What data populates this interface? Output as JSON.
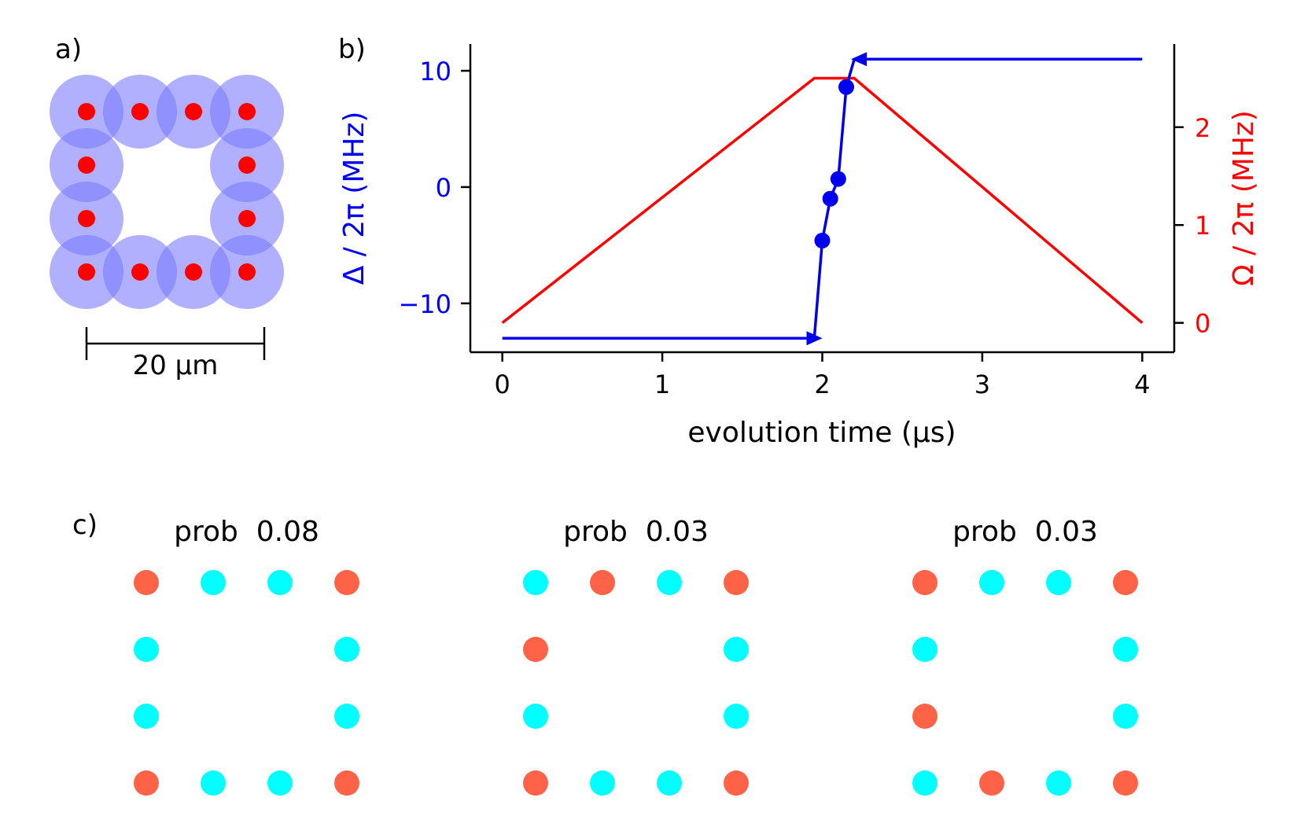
{
  "panel_a": {
    "label": "a)",
    "scale_bar_label": "20 μm",
    "atom_color": "#ff0000",
    "blockade_color": "#7b7bff",
    "atoms": [
      [
        0,
        0
      ],
      [
        1,
        0
      ],
      [
        2,
        0
      ],
      [
        3,
        0
      ],
      [
        0,
        1
      ],
      [
        3,
        1
      ],
      [
        0,
        2
      ],
      [
        3,
        2
      ],
      [
        0,
        3
      ],
      [
        1,
        3
      ],
      [
        2,
        3
      ],
      [
        3,
        3
      ]
    ]
  },
  "chart_data": {
    "type": "line",
    "label": "b)",
    "xlabel": "evolution time (μs)",
    "xlim": [
      -0.2,
      4.2
    ],
    "xticks": [
      0,
      1,
      2,
      3,
      4
    ],
    "left_axis": {
      "label": "Δ / 2π (MHz)",
      "color": "#0000ee",
      "ylim": [
        -14.2,
        12.3
      ],
      "ticks": [
        -10,
        0,
        10
      ],
      "tick_labels": [
        "−10",
        "0",
        "10"
      ]
    },
    "right_axis": {
      "label": "Ω / 2π (MHz)",
      "color": "#ff0000",
      "ylim": [
        -0.3,
        2.85
      ],
      "ticks": [
        0,
        1,
        2
      ],
      "tick_labels": [
        "0",
        "1",
        "2"
      ]
    },
    "series": [
      {
        "name": "Omega",
        "axis": "right",
        "color": "#ff0000",
        "x": [
          0,
          1.95,
          2.2,
          4
        ],
        "y": [
          0,
          2.5,
          2.5,
          0
        ]
      },
      {
        "name": "Delta",
        "axis": "left",
        "color": "#0000ee",
        "x": [
          1.95,
          2.0,
          2.05,
          2.1,
          2.15,
          2.2
        ],
        "y": [
          -13,
          -4.6,
          -1.0,
          0.7,
          8.6,
          11
        ],
        "markers_x": [
          2.0,
          2.05,
          2.1,
          2.15
        ],
        "markers_y": [
          -4.6,
          -1.0,
          0.7,
          8.6
        ]
      }
    ],
    "arrows": [
      {
        "name": "delta-start-arrow",
        "from": [
          0,
          -13
        ],
        "to": [
          2.0,
          -13
        ]
      },
      {
        "name": "delta-end-arrow",
        "from": [
          4,
          11
        ],
        "to": [
          2.18,
          11
        ]
      }
    ]
  },
  "panel_c": {
    "label": "c)",
    "prob_word": "prob",
    "colors": {
      "excited": "#ff6347",
      "ground": "#00ffff"
    },
    "configs": [
      {
        "prob": "0.08",
        "states": [
          "E",
          "G",
          "G",
          "E",
          "G",
          "G",
          "G",
          "G",
          "E",
          "G",
          "G",
          "E"
        ]
      },
      {
        "prob": "0.03",
        "states": [
          "G",
          "E",
          "G",
          "E",
          "E",
          "G",
          "G",
          "G",
          "E",
          "G",
          "G",
          "E"
        ]
      },
      {
        "prob": "0.03",
        "states": [
          "E",
          "G",
          "G",
          "E",
          "G",
          "G",
          "E",
          "G",
          "G",
          "E",
          "G",
          "E"
        ]
      }
    ]
  }
}
